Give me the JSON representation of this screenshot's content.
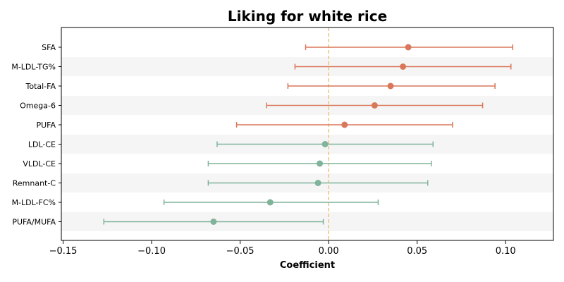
{
  "chart_data": {
    "type": "forest",
    "title": "Liking for white rice",
    "xlabel": "Coefficient",
    "ylabel": "",
    "xlim": [
      -0.151,
      0.127
    ],
    "xticks": [
      -0.15,
      -0.1,
      -0.05,
      0.0,
      0.05,
      0.1
    ],
    "xtick_labels": [
      "−0.15",
      "−0.10",
      "−0.05",
      "0.00",
      "0.05",
      "0.10"
    ],
    "reference_line": 0.0,
    "grid": false,
    "row_banding": true,
    "colors": {
      "positive": "#d9775a",
      "negative": "#7fb39a",
      "reference": "#f0c27f",
      "band": "#f5f5f5"
    },
    "rows": [
      {
        "label": "SFA",
        "estimate": 0.045,
        "lower": -0.013,
        "upper": 0.104,
        "color": "#d9775a"
      },
      {
        "label": "M-LDL-TG%",
        "estimate": 0.042,
        "lower": -0.019,
        "upper": 0.103,
        "color": "#d9775a"
      },
      {
        "label": "Total-FA",
        "estimate": 0.035,
        "lower": -0.023,
        "upper": 0.094,
        "color": "#d9775a"
      },
      {
        "label": "Omega-6",
        "estimate": 0.026,
        "lower": -0.035,
        "upper": 0.087,
        "color": "#d9775a"
      },
      {
        "label": "PUFA",
        "estimate": 0.009,
        "lower": -0.052,
        "upper": 0.07,
        "color": "#d9775a"
      },
      {
        "label": "LDL-CE",
        "estimate": -0.002,
        "lower": -0.063,
        "upper": 0.059,
        "color": "#7fb39a"
      },
      {
        "label": "VLDL-CE",
        "estimate": -0.005,
        "lower": -0.068,
        "upper": 0.058,
        "color": "#7fb39a"
      },
      {
        "label": "Remnant-C",
        "estimate": -0.006,
        "lower": -0.068,
        "upper": 0.056,
        "color": "#7fb39a"
      },
      {
        "label": "M-LDL-FC%",
        "estimate": -0.033,
        "lower": -0.093,
        "upper": 0.028,
        "color": "#7fb39a"
      },
      {
        "label": "PUFA/MUFA",
        "estimate": -0.065,
        "lower": -0.127,
        "upper": -0.003,
        "color": "#7fb39a"
      }
    ]
  }
}
